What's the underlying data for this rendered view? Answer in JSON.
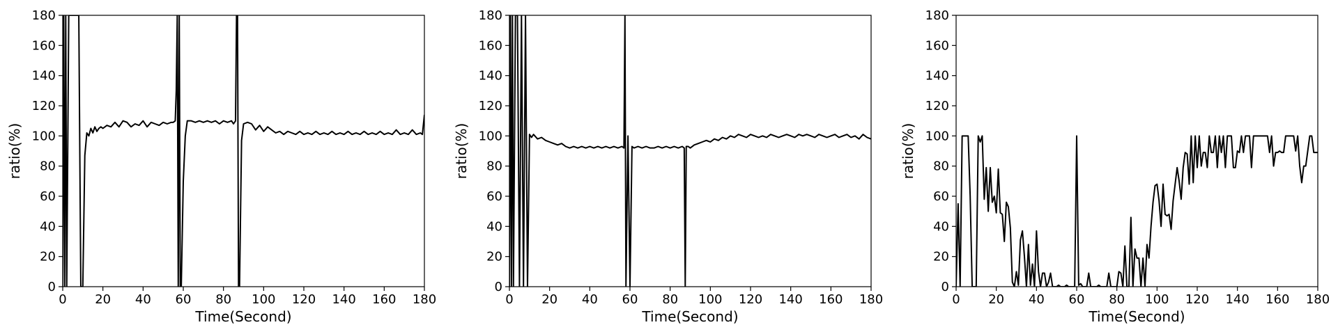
{
  "chart_data": [
    {
      "type": "line",
      "xlabel": "Time(Second)",
      "ylabel": "ratio(%)",
      "xlim": [
        0,
        180
      ],
      "ylim": [
        0,
        180
      ],
      "xticks": [
        0,
        20,
        40,
        60,
        80,
        100,
        120,
        140,
        160,
        180
      ],
      "yticks": [
        0,
        20,
        40,
        60,
        80,
        100,
        120,
        140,
        160,
        180
      ],
      "color": "#000000",
      "series": [
        {
          "x": [
            0,
            0.5,
            1,
            1.5,
            2,
            3,
            4,
            5,
            6,
            7,
            8,
            9,
            9.5,
            10,
            11,
            12,
            13,
            14,
            15,
            16,
            17,
            18,
            19,
            20,
            22,
            24,
            26,
            28,
            30,
            32,
            34,
            36,
            38,
            40,
            42,
            44,
            46,
            48,
            50,
            52,
            54,
            55,
            56,
            56.5,
            57,
            57.5,
            58,
            58.5,
            59,
            60,
            61,
            62,
            64,
            66,
            68,
            70,
            72,
            74,
            76,
            78,
            80,
            82,
            84,
            85,
            86,
            86.5,
            87,
            87.5,
            88,
            89,
            90,
            92,
            94,
            96,
            98,
            100,
            102,
            104,
            106,
            108,
            110,
            112,
            114,
            116,
            118,
            120,
            122,
            124,
            126,
            128,
            130,
            132,
            134,
            136,
            138,
            140,
            142,
            144,
            146,
            148,
            150,
            152,
            154,
            156,
            158,
            160,
            162,
            164,
            166,
            168,
            170,
            172,
            174,
            176,
            178,
            179,
            180
          ],
          "y": [
            0,
            180,
            0,
            180,
            0,
            180,
            180,
            180,
            180,
            180,
            180,
            0,
            0,
            0,
            87,
            102,
            100,
            105,
            102,
            106,
            103,
            105,
            106,
            105,
            107,
            106,
            109,
            106,
            110,
            109,
            106,
            108,
            107,
            110,
            106,
            109,
            108,
            107,
            109,
            108,
            109,
            109,
            110,
            130,
            180,
            0,
            180,
            0,
            0,
            70,
            100,
            110,
            110,
            109,
            110,
            109,
            110,
            109,
            110,
            108,
            110,
            109,
            110,
            108,
            110,
            180,
            180,
            0,
            0,
            97,
            108,
            109,
            108,
            104,
            107,
            103,
            106,
            104,
            102,
            103,
            101,
            103,
            102,
            101,
            103,
            101,
            102,
            101,
            103,
            101,
            102,
            101,
            103,
            101,
            102,
            101,
            103,
            101,
            102,
            101,
            103,
            101,
            102,
            101,
            103,
            101,
            102,
            101,
            104,
            101,
            102,
            101,
            104,
            101,
            102,
            101,
            114
          ]
        }
      ]
    },
    {
      "type": "line",
      "xlabel": "Time(Second)",
      "ylabel": "ratio(%)",
      "xlim": [
        0,
        180
      ],
      "ylim": [
        0,
        180
      ],
      "xticks": [
        0,
        20,
        40,
        60,
        80,
        100,
        120,
        140,
        160,
        180
      ],
      "yticks": [
        0,
        20,
        40,
        60,
        80,
        100,
        120,
        140,
        160,
        180
      ],
      "color": "#000000",
      "series": [
        {
          "x": [
            0,
            0.5,
            1,
            1.5,
            2,
            3,
            4,
            5,
            6,
            7,
            8,
            9,
            10,
            11,
            12,
            14,
            16,
            18,
            20,
            22,
            24,
            26,
            28,
            30,
            32,
            34,
            36,
            38,
            40,
            42,
            44,
            46,
            48,
            50,
            52,
            54,
            56,
            57,
            57.5,
            58,
            59,
            60,
            61,
            62,
            64,
            66,
            68,
            70,
            72,
            74,
            76,
            78,
            80,
            82,
            84,
            86,
            87,
            87.5,
            88,
            89,
            90,
            92,
            94,
            96,
            98,
            100,
            102,
            104,
            106,
            108,
            110,
            112,
            114,
            116,
            118,
            120,
            122,
            124,
            126,
            128,
            130,
            132,
            134,
            136,
            138,
            140,
            142,
            144,
            146,
            148,
            150,
            152,
            154,
            156,
            158,
            160,
            162,
            164,
            166,
            168,
            170,
            172,
            174,
            176,
            178,
            180
          ],
          "y": [
            0,
            180,
            0,
            180,
            0,
            180,
            180,
            0,
            180,
            0,
            180,
            0,
            101,
            99,
            101,
            98,
            99,
            97,
            96,
            95,
            94,
            95,
            93,
            92,
            93,
            92,
            93,
            92,
            93,
            92,
            93,
            92,
            93,
            92,
            93,
            92,
            93,
            92,
            180,
            0,
            100,
            0,
            93,
            92,
            93,
            92,
            93,
            92,
            92,
            93,
            92,
            93,
            92,
            93,
            92,
            93,
            92,
            0,
            93,
            93,
            92,
            94,
            95,
            96,
            97,
            96,
            98,
            97,
            99,
            98,
            100,
            99,
            101,
            100,
            99,
            101,
            100,
            99,
            100,
            99,
            101,
            100,
            99,
            100,
            101,
            100,
            99,
            101,
            100,
            101,
            100,
            99,
            101,
            100,
            99,
            100,
            101,
            99,
            100,
            101,
            99,
            100,
            98,
            101,
            99,
            98
          ]
        }
      ]
    },
    {
      "type": "line",
      "xlabel": "Time(Second)",
      "ylabel": "ratio(%)",
      "xlim": [
        0,
        180
      ],
      "ylim": [
        0,
        180
      ],
      "xticks": [
        0,
        20,
        40,
        60,
        80,
        100,
        120,
        140,
        160,
        180
      ],
      "yticks": [
        0,
        20,
        40,
        60,
        80,
        100,
        120,
        140,
        160,
        180
      ],
      "color": "#000000",
      "series": [
        {
          "x": [
            0,
            1,
            2,
            3,
            4,
            5,
            6,
            7,
            8,
            9,
            10,
            11,
            12,
            13,
            14,
            15,
            16,
            17,
            18,
            19,
            20,
            21,
            22,
            23,
            24,
            25,
            26,
            27,
            28,
            29,
            30,
            31,
            32,
            33,
            34,
            35,
            36,
            37,
            38,
            39,
            40,
            41,
            42,
            43,
            44,
            45,
            46,
            47,
            48,
            49,
            50,
            51,
            52,
            53,
            54,
            55,
            56,
            57,
            58,
            59,
            60,
            61,
            62,
            63,
            64,
            65,
            66,
            67,
            68,
            69,
            70,
            71,
            72,
            73,
            74,
            75,
            76,
            77,
            78,
            79,
            80,
            81,
            82,
            83,
            84,
            85,
            86,
            87,
            88,
            89,
            90,
            91,
            92,
            93,
            94,
            95,
            96,
            97,
            98,
            99,
            100,
            101,
            102,
            103,
            104,
            105,
            106,
            107,
            108,
            109,
            110,
            111,
            112,
            113,
            114,
            115,
            116,
            117,
            118,
            119,
            120,
            121,
            122,
            123,
            124,
            125,
            126,
            127,
            128,
            129,
            130,
            131,
            132,
            133,
            134,
            135,
            136,
            137,
            138,
            139,
            140,
            141,
            142,
            143,
            144,
            145,
            146,
            147,
            148,
            149,
            150,
            151,
            152,
            153,
            154,
            155,
            156,
            157,
            158,
            159,
            160,
            161,
            162,
            163,
            164,
            165,
            166,
            167,
            168,
            169,
            170,
            171,
            172,
            173,
            174,
            175,
            176,
            177,
            178,
            179,
            180
          ],
          "y": [
            0,
            55,
            0,
            100,
            100,
            100,
            100,
            60,
            0,
            0,
            0,
            100,
            96,
            100,
            58,
            79,
            50,
            79,
            56,
            60,
            49,
            78,
            49,
            48,
            30,
            56,
            53,
            39,
            3,
            0,
            10,
            1,
            31,
            37,
            20,
            0,
            28,
            1,
            15,
            0,
            37,
            10,
            0,
            9,
            9,
            0,
            3,
            9,
            0,
            0,
            0,
            1,
            0,
            0,
            0,
            1,
            0,
            0,
            0,
            0,
            100,
            1,
            2,
            0,
            0,
            0,
            9,
            0,
            0,
            0,
            0,
            1,
            0,
            0,
            0,
            0,
            9,
            0,
            0,
            0,
            0,
            10,
            9,
            0,
            27,
            0,
            0,
            46,
            0,
            25,
            19,
            19,
            0,
            19,
            0,
            28,
            19,
            40,
            56,
            67,
            68,
            57,
            40,
            68,
            48,
            47,
            48,
            38,
            57,
            68,
            79,
            70,
            58,
            79,
            89,
            88,
            68,
            100,
            69,
            100,
            79,
            100,
            80,
            89,
            89,
            79,
            100,
            89,
            89,
            100,
            79,
            100,
            89,
            100,
            79,
            100,
            100,
            100,
            79,
            79,
            90,
            89,
            100,
            89,
            100,
            100,
            100,
            79,
            100,
            100,
            100,
            100,
            100,
            100,
            100,
            100,
            89,
            100,
            80,
            89,
            89,
            90,
            89,
            89,
            100,
            100,
            100,
            100,
            100,
            90,
            100,
            80,
            69,
            80,
            80,
            90,
            100,
            100,
            89,
            89,
            89
          ]
        }
      ]
    }
  ]
}
